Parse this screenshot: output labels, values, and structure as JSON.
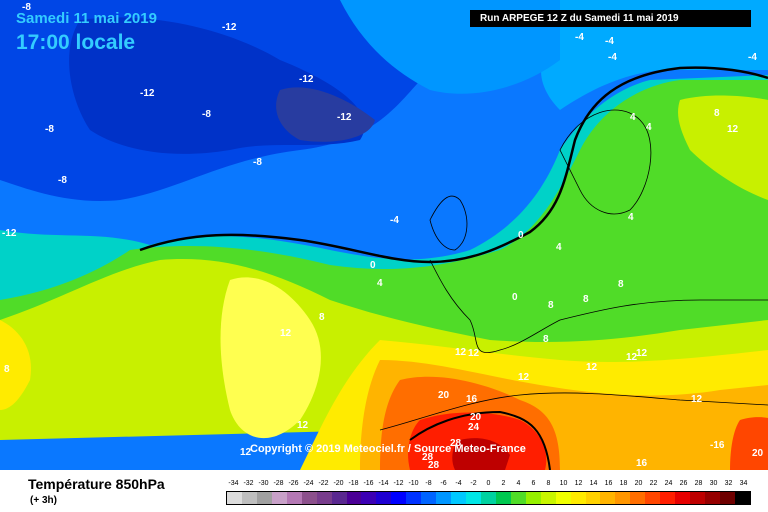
{
  "header": {
    "date": "Samedi 11 mai 2019",
    "time": "17:00 locale",
    "run_info": "Run ARPEGE 12 Z du Samedi 11 mai 2019"
  },
  "copyright": "Copyright © 2019 Meteociel.fr / Source Meteo-France",
  "legend": {
    "title": "Température 850hPa",
    "subtitle": "(+ 3h)",
    "ticks": [
      "-34",
      "-32",
      "-30",
      "-28",
      "-26",
      "-24",
      "-22",
      "-20",
      "-18",
      "-16",
      "-14",
      "-12",
      "-10",
      "-8",
      "-6",
      "-4",
      "-2",
      "0",
      "2",
      "4",
      "6",
      "8",
      "10",
      "12",
      "14",
      "16",
      "18",
      "20",
      "22",
      "24",
      "26",
      "28",
      "30",
      "32",
      "34"
    ],
    "colors": [
      "#dcdcdc",
      "#bebebe",
      "#a0a0a0",
      "#c8a0c8",
      "#b478b4",
      "#8c508c",
      "#783c8c",
      "#5a2890",
      "#4b0096",
      "#3c00b4",
      "#1e00d2",
      "#0000ff",
      "#0032ff",
      "#0064ff",
      "#0096ff",
      "#00c8ff",
      "#00e6e6",
      "#00d2a0",
      "#00c850",
      "#50dc28",
      "#96f000",
      "#c8f500",
      "#f0ff00",
      "#ffeb00",
      "#ffd200",
      "#ffb400",
      "#ff9600",
      "#ff6e00",
      "#ff4600",
      "#ff1e00",
      "#e60000",
      "#be0000",
      "#960000",
      "#6e0000",
      "#000000"
    ]
  },
  "map_labels": [
    {
      "t": "-8"
    },
    {
      "t": "-12"
    },
    {
      "t": "-12"
    },
    {
      "t": "-4"
    },
    {
      "t": "-4"
    },
    {
      "t": "-4"
    },
    {
      "t": "-4"
    },
    {
      "t": "-12"
    },
    {
      "t": "-12"
    },
    {
      "t": "-8"
    },
    {
      "t": "-8"
    },
    {
      "t": "-12"
    },
    {
      "t": "-8"
    },
    {
      "t": "-8"
    },
    {
      "t": "-4"
    },
    {
      "t": "0"
    },
    {
      "t": "4"
    },
    {
      "t": "0"
    },
    {
      "t": "4"
    },
    {
      "t": "4"
    },
    {
      "t": "8"
    },
    {
      "t": "12"
    },
    {
      "t": "4"
    },
    {
      "t": "4"
    },
    {
      "t": "8"
    },
    {
      "t": "12"
    },
    {
      "t": "8"
    },
    {
      "t": "8"
    },
    {
      "t": "12"
    },
    {
      "t": "12"
    },
    {
      "t": "12"
    },
    {
      "t": "12"
    },
    {
      "t": "12"
    },
    {
      "t": "20"
    },
    {
      "t": "16"
    },
    {
      "t": "20"
    },
    {
      "t": "24"
    },
    {
      "t": "28"
    },
    {
      "t": "28"
    },
    {
      "t": "28"
    },
    {
      "t": "12"
    },
    {
      "t": "12"
    },
    {
      "t": "-16"
    },
    {
      "t": "16"
    },
    {
      "t": "20"
    },
    {
      "t": "8"
    },
    {
      "t": "0"
    },
    {
      "t": "12"
    },
    {
      "t": "12"
    },
    {
      "t": "8"
    },
    {
      "t": "8"
    }
  ]
}
